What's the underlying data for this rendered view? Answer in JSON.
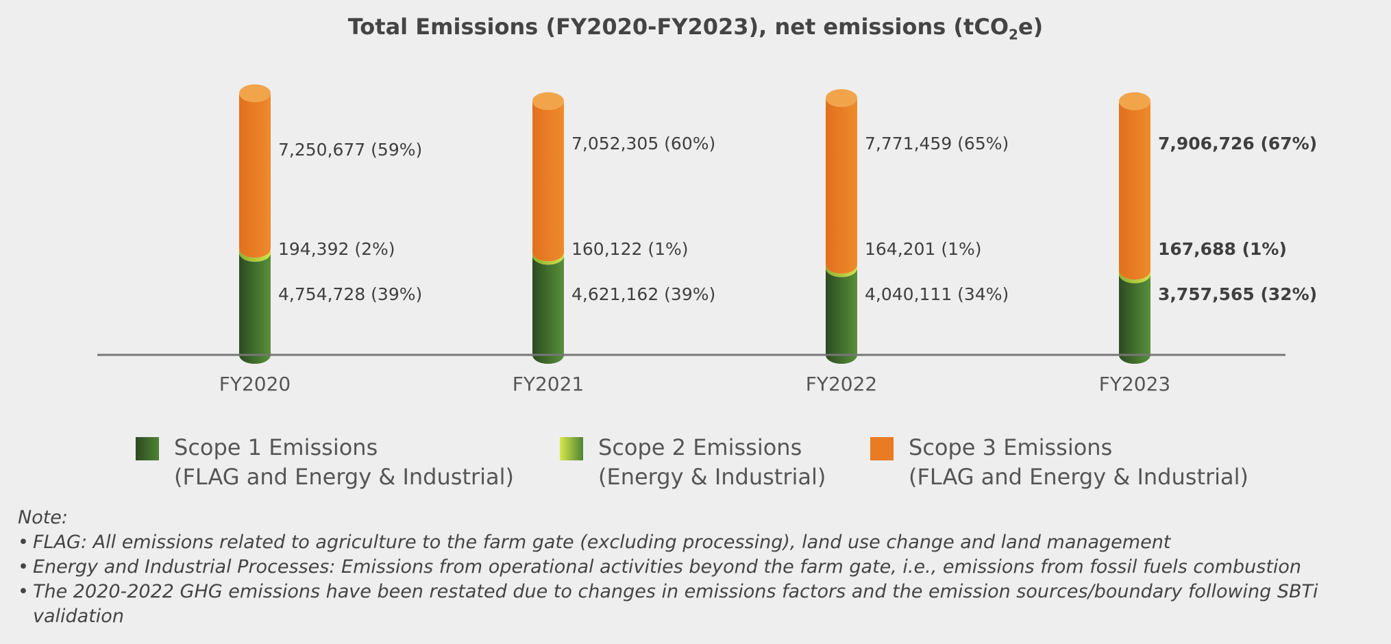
{
  "chart_data": {
    "type": "bar",
    "stacked": true,
    "title": "Total Emissions (FY2020-FY2023), net emissions (tCO",
    "title_sub": "2",
    "title_end": "e)",
    "categories": [
      "FY2020",
      "FY2021",
      "FY2022",
      "FY2023"
    ],
    "series": [
      {
        "key": "scope1",
        "name_line1": "Scope 1 Emissions",
        "name_line2": "(FLAG and Energy & Industrial)",
        "color": "#3f6e2c",
        "values": [
          4754728,
          4621162,
          4040111,
          3757565
        ],
        "labels": [
          "4,754,728 (39%)",
          "4,621,162 (39%)",
          "4,040,111 (34%)",
          "3,757,565 (32%)"
        ]
      },
      {
        "key": "scope2",
        "name_line1": "Scope 2 Emissions",
        "name_line2": "(Energy & Industrial)",
        "color": "#a5c53a",
        "values": [
          194392,
          160122,
          164201,
          167688
        ],
        "labels": [
          "194,392 (2%)",
          "160,122 (1%)",
          "164,201 (1%)",
          "167,688 (1%)"
        ]
      },
      {
        "key": "scope3",
        "name_line1": "Scope 3 Emissions",
        "name_line2": "(FLAG and Energy & Industrial)",
        "color": "#e87b24",
        "values": [
          7250677,
          7052305,
          7771459,
          7906726
        ],
        "labels": [
          "7,250,677 (59%)",
          "7,052,305 (60%)",
          "7,771,459 (65%)",
          "7,906,726 (67%)"
        ]
      }
    ],
    "bold_category": "FY2023",
    "grid": false,
    "legend_position": "bottom"
  },
  "notes": {
    "title": "Note:",
    "items": [
      "FLAG: All emissions related to agriculture to the farm gate (excluding processing), land use change and land management",
      "Energy and Industrial Processes: Emissions from operational activities beyond the farm gate, i.e., emissions from fossil fuels combustion",
      "The 2020-2022 GHG emissions have been restated due to changes in emissions factors and the emission sources/boundary following SBTi",
      "validation"
    ]
  }
}
